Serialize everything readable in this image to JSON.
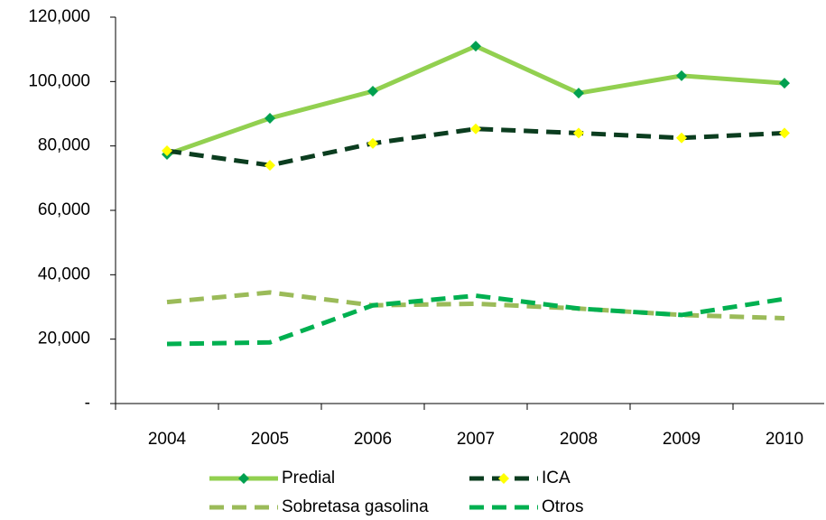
{
  "chart_data": {
    "type": "line",
    "categories": [
      "2004",
      "2005",
      "2006",
      "2007",
      "2008",
      "2009",
      "2010"
    ],
    "ylim": [
      0,
      120000
    ],
    "yticks": [
      {
        "value": 0,
        "label": "-"
      },
      {
        "value": 20000,
        "label": "20,000"
      },
      {
        "value": 40000,
        "label": "40,000"
      },
      {
        "value": 60000,
        "label": "60,000"
      },
      {
        "value": 80000,
        "label": "80,000"
      },
      {
        "value": 100000,
        "label": "100,000"
      },
      {
        "value": 120000,
        "label": "120,000"
      }
    ],
    "series": [
      {
        "name": "Predial",
        "color": "#92d050",
        "line_style": "solid",
        "marker": "diamond",
        "marker_color": "#00a050",
        "values": [
          77400,
          88600,
          97000,
          111000,
          96400,
          101800,
          99500
        ]
      },
      {
        "name": "ICA",
        "color": "#0b3d1f",
        "line_style": "dashed",
        "marker": "diamond",
        "marker_color": "#ffff00",
        "values": [
          78500,
          74000,
          80800,
          85300,
          84000,
          82500,
          84000
        ]
      },
      {
        "name": "Sobretasa gasolina",
        "color": "#9bbb59",
        "line_style": "dashed",
        "values": [
          31500,
          34500,
          30500,
          31000,
          29500,
          27500,
          26500
        ]
      },
      {
        "name": "Otros",
        "color": "#00b050",
        "line_style": "dashed",
        "values": [
          18500,
          19000,
          30500,
          33500,
          29500,
          27500,
          32500
        ]
      }
    ]
  }
}
